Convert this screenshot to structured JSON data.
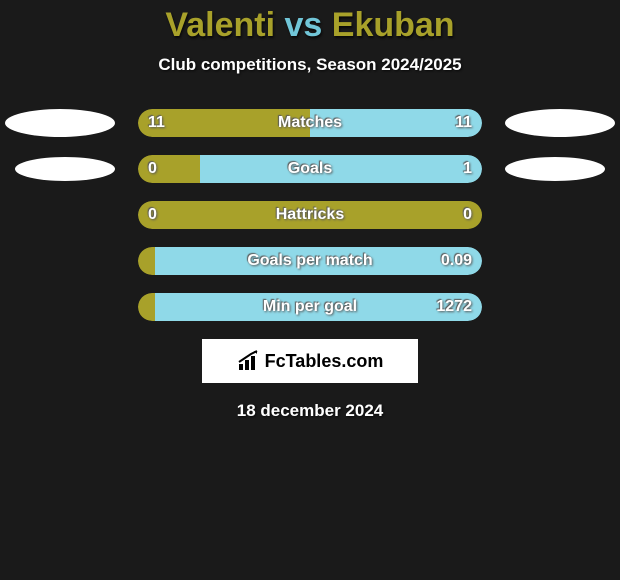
{
  "title_player1": "Valenti",
  "title_vs": "vs",
  "title_player2": "Ekuban",
  "title_color_p1": "#a8a12a",
  "title_color_vs": "#71c6d8",
  "title_color_p2": "#a8a12a",
  "subtitle": "Club competitions, Season 2024/2025",
  "colors": {
    "left": "#a8a12a",
    "right": "#8fd9e8",
    "background": "#1a1a1a",
    "ellipse": "#ffffff"
  },
  "rows": [
    {
      "label": "Matches",
      "left_val": "11",
      "right_val": "11",
      "left_pct": 50,
      "right_pct": 50,
      "show_left_ellipse": true,
      "show_right_ellipse": true,
      "ellipse_small": false
    },
    {
      "label": "Goals",
      "left_val": "0",
      "right_val": "1",
      "left_pct": 18,
      "right_pct": 82,
      "show_left_ellipse": true,
      "show_right_ellipse": true,
      "ellipse_small": true
    },
    {
      "label": "Hattricks",
      "left_val": "0",
      "right_val": "0",
      "left_pct": 100,
      "right_pct": 0,
      "show_left_ellipse": false,
      "show_right_ellipse": false,
      "ellipse_small": false
    },
    {
      "label": "Goals per match",
      "left_val": "",
      "right_val": "0.09",
      "left_pct": 5,
      "right_pct": 95,
      "show_left_ellipse": false,
      "show_right_ellipse": false,
      "ellipse_small": false
    },
    {
      "label": "Min per goal",
      "left_val": "",
      "right_val": "1272",
      "left_pct": 5,
      "right_pct": 95,
      "show_left_ellipse": false,
      "show_right_ellipse": false,
      "ellipse_small": false
    }
  ],
  "logo_text": "FcTables.com",
  "date_text": "18 december 2024"
}
